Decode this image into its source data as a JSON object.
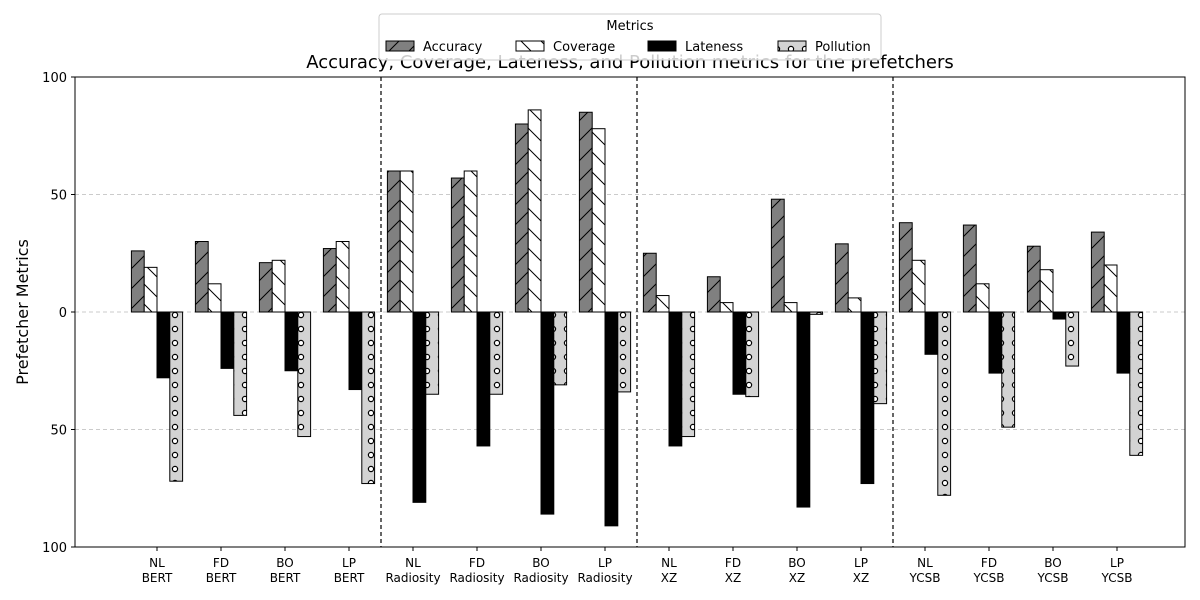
{
  "chart_data": {
    "type": "bar",
    "title": "Accuracy, Coverage, Lateness, and Pollution metrics for the prefetchers",
    "xlabel": "",
    "ylabel": "Prefetcher Metrics",
    "ylim": [
      -100,
      100
    ],
    "y_ticks": [
      {
        "value": 100,
        "label": "100"
      },
      {
        "value": 50,
        "label": "50"
      },
      {
        "value": 0,
        "label": "0"
      },
      {
        "value": -50,
        "label": "50"
      },
      {
        "value": -100,
        "label": "100"
      }
    ],
    "grid": "horizontal dashed at 50, 0 and -50",
    "legend": {
      "title": "Metrics",
      "placement": "top-center"
    },
    "groups": [
      "BERT",
      "Radiosity",
      "XZ",
      "YCSB"
    ],
    "categories": [
      {
        "line1": "NL",
        "line2": "BERT"
      },
      {
        "line1": "FD",
        "line2": "BERT"
      },
      {
        "line1": "BO",
        "line2": "BERT"
      },
      {
        "line1": "LP",
        "line2": "BERT"
      },
      {
        "line1": "NL",
        "line2": "Radiosity"
      },
      {
        "line1": "FD",
        "line2": "Radiosity"
      },
      {
        "line1": "BO",
        "line2": "Radiosity"
      },
      {
        "line1": "LP",
        "line2": "Radiosity"
      },
      {
        "line1": "NL",
        "line2": "XZ"
      },
      {
        "line1": "FD",
        "line2": "XZ"
      },
      {
        "line1": "BO",
        "line2": "XZ"
      },
      {
        "line1": "LP",
        "line2": "XZ"
      },
      {
        "line1": "NL",
        "line2": "YCSB"
      },
      {
        "line1": "FD",
        "line2": "YCSB"
      },
      {
        "line1": "BO",
        "line2": "YCSB"
      },
      {
        "line1": "LP",
        "line2": "YCSB"
      }
    ],
    "series": [
      {
        "name": "Accuracy",
        "color": "#808080",
        "pattern": "diagonal",
        "values": [
          26,
          30,
          21,
          27,
          60,
          57,
          80,
          85,
          25,
          15,
          48,
          29,
          38,
          37,
          28,
          34
        ]
      },
      {
        "name": "Coverage",
        "color": "#ffffff",
        "pattern": "back-diagonal",
        "values": [
          19,
          12,
          22,
          30,
          60,
          60,
          86,
          78,
          7,
          4,
          4,
          6,
          22,
          12,
          18,
          20
        ]
      },
      {
        "name": "Lateness",
        "color": "#000000",
        "pattern": "none",
        "values": [
          -28,
          -24,
          -25,
          -33,
          -81,
          -57,
          -86,
          -91,
          -57,
          -35,
          -83,
          -73,
          -18,
          -26,
          -3,
          -26
        ]
      },
      {
        "name": "Pollution",
        "color": "#d3d3d3",
        "pattern": "circles",
        "values": [
          -72,
          -44,
          -53,
          -73,
          -35,
          -35,
          -31,
          -34,
          -53,
          -36,
          -1,
          -39,
          -78,
          -49,
          -23,
          -61
        ]
      }
    ]
  }
}
